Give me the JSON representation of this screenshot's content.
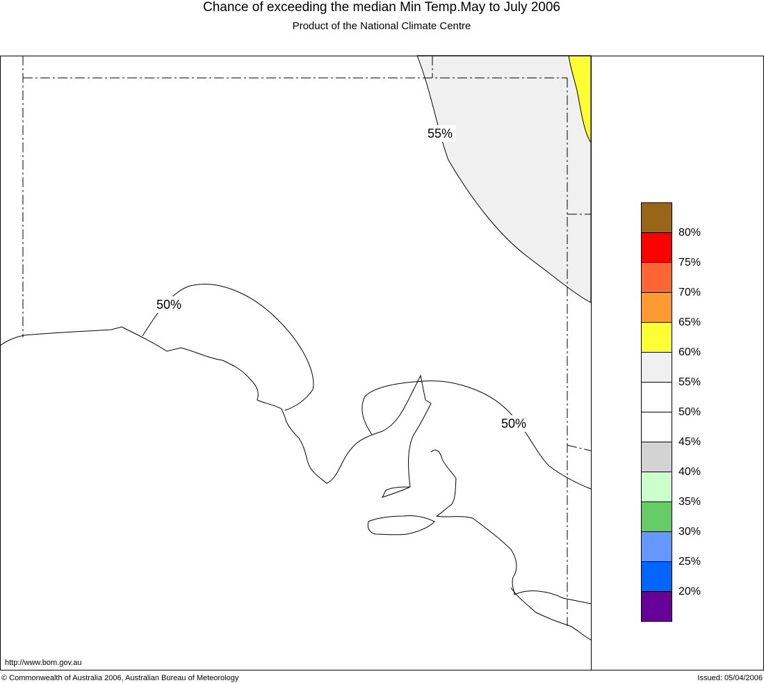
{
  "header": {
    "title": "Chance of exceeding the median Min Temp.May to July 2006",
    "subtitle": "Product of the National Climate Centre"
  },
  "map": {
    "contour_labels": [
      "55%",
      "50%",
      "50%"
    ]
  },
  "legend": {
    "colors": [
      "#996619",
      "#ff0000",
      "#ff6633",
      "#ff9933",
      "#ffff33",
      "#f0f0f0",
      "#ffffff",
      "#ffffff",
      "#d3d3d3",
      "#ccffcc",
      "#66cc66",
      "#6699ff",
      "#0066ff",
      "#660099"
    ],
    "labels": [
      "80%",
      "75%",
      "70%",
      "65%",
      "60%",
      "55%",
      "50%",
      "45%",
      "40%",
      "35%",
      "30%",
      "25%",
      "20%"
    ]
  },
  "footer": {
    "url": "http://www.bom.gov.au",
    "copyright": "© Commonwealth of Australia 2006, Australian Bureau of Meteorology",
    "issued": "Issued: 05/04/2006"
  }
}
